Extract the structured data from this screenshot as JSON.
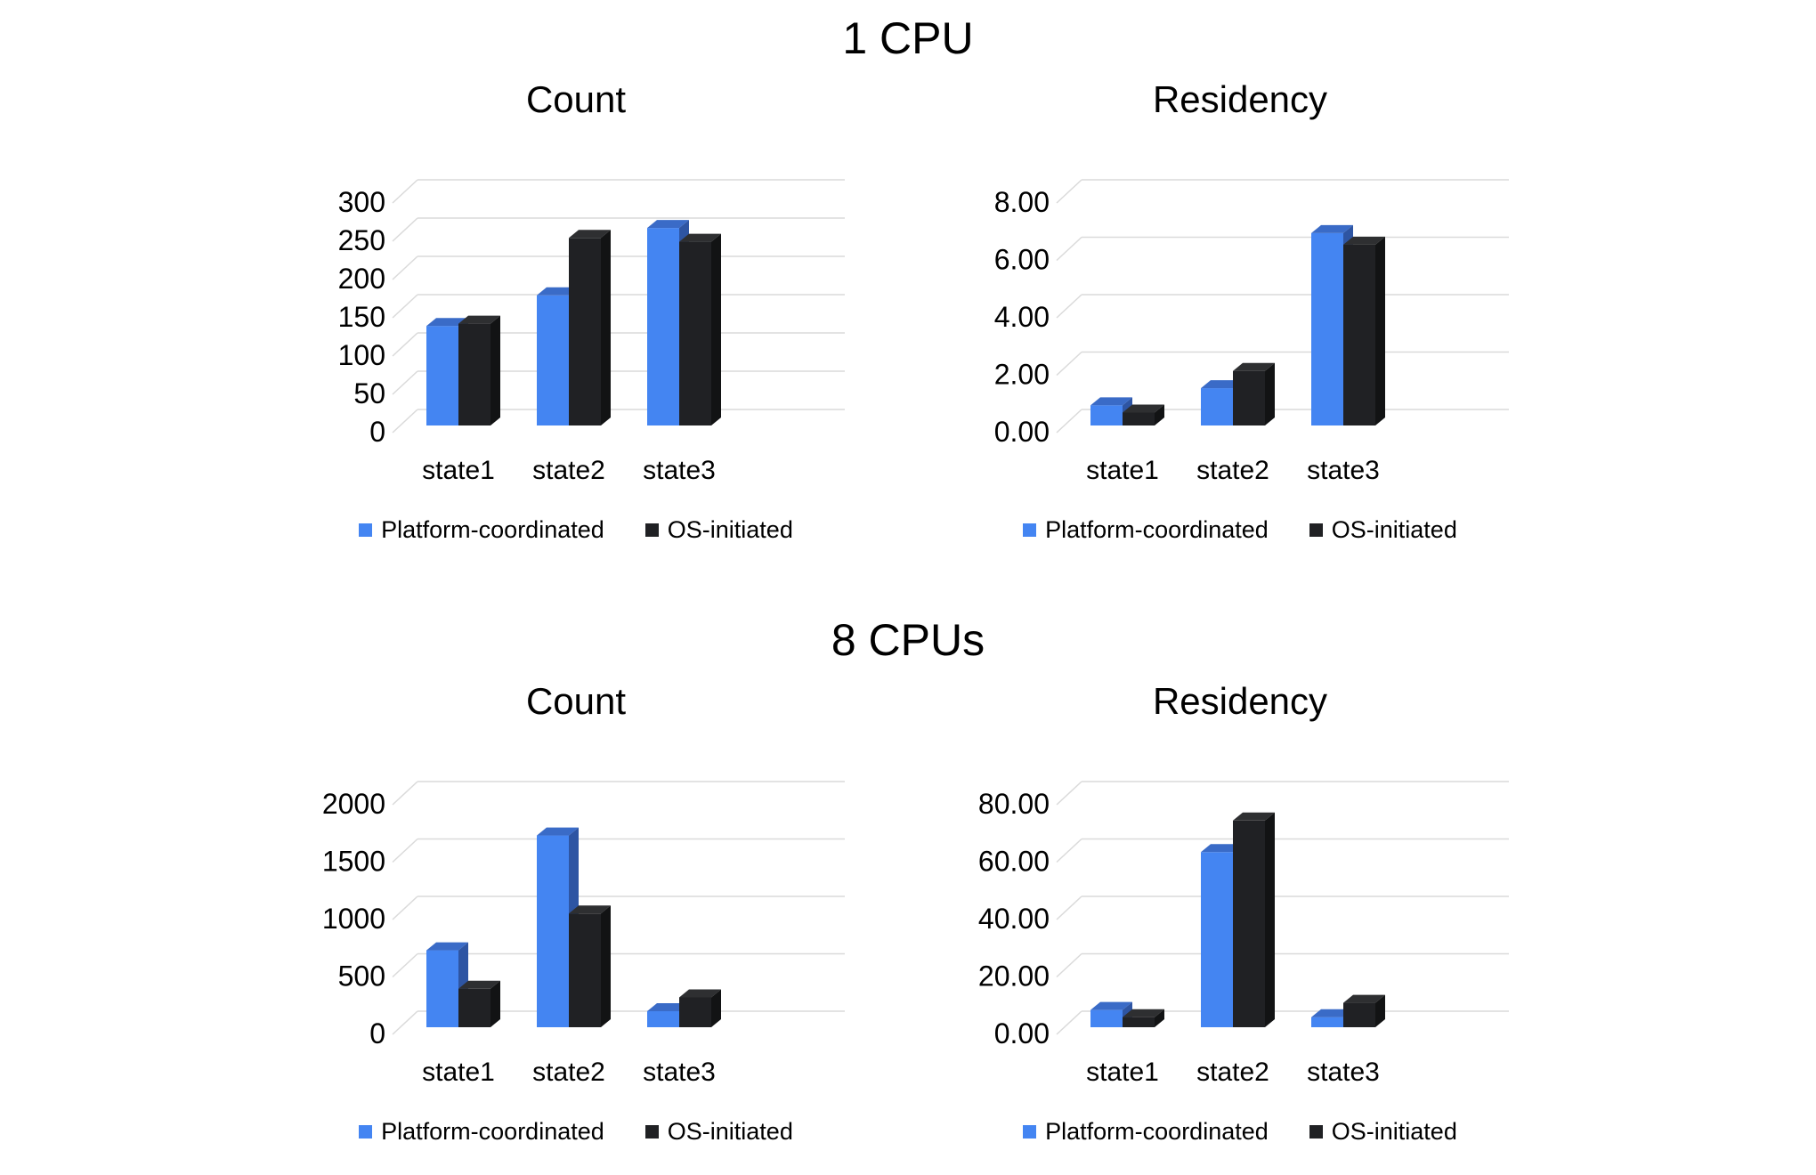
{
  "sections": [
    {
      "title": "1 CPU"
    },
    {
      "title": "8 CPUs"
    }
  ],
  "legend": {
    "platform_label": "Platform-coordinated",
    "os_label": "OS-initiated",
    "platform_color": "#4485F2",
    "os_color": "#212121"
  },
  "chart_data": [
    {
      "type": "bar",
      "style": "3d-column",
      "group": "1 CPU",
      "title": "Count",
      "categories": [
        "state1",
        "state2",
        "state3"
      ],
      "series": [
        {
          "name": "Platform-coordinated",
          "values": [
            130,
            170,
            258
          ],
          "colors": {
            "front": "#4485F2",
            "top": "#3A6BC7",
            "side": "#2E55A3"
          }
        },
        {
          "name": "OS-initiated",
          "values": [
            133,
            245,
            240
          ],
          "colors": {
            "front": "#202124",
            "top": "#2E2F31",
            "side": "#121314"
          }
        }
      ],
      "ylim": [
        0,
        300
      ],
      "ytick_labels": [
        "0",
        "50",
        "100",
        "150",
        "200",
        "250",
        "300"
      ],
      "grid": true,
      "legend_position": "bottom"
    },
    {
      "type": "bar",
      "style": "3d-column",
      "group": "1 CPU",
      "title": "Residency",
      "categories": [
        "state1",
        "state2",
        "state3"
      ],
      "series": [
        {
          "name": "Platform-coordinated",
          "values": [
            0.7,
            1.3,
            6.7
          ],
          "colors": {
            "front": "#4485F2",
            "top": "#3A6BC7",
            "side": "#2E55A3"
          }
        },
        {
          "name": "OS-initiated",
          "values": [
            0.45,
            1.9,
            6.3
          ],
          "colors": {
            "front": "#202124",
            "top": "#2E2F31",
            "side": "#121314"
          }
        }
      ],
      "ylim": [
        0,
        8
      ],
      "ytick_labels": [
        "0.00",
        "2.00",
        "4.00",
        "6.00",
        "8.00"
      ],
      "grid": true,
      "legend_position": "bottom"
    },
    {
      "type": "bar",
      "style": "3d-column",
      "group": "8 CPUs",
      "title": "Count",
      "categories": [
        "state1",
        "state2",
        "state3"
      ],
      "series": [
        {
          "name": "Platform-coordinated",
          "values": [
            670,
            1670,
            140
          ],
          "colors": {
            "front": "#4485F2",
            "top": "#3A6BC7",
            "side": "#2E55A3"
          }
        },
        {
          "name": "OS-initiated",
          "values": [
            335,
            990,
            260
          ],
          "colors": {
            "front": "#202124",
            "top": "#2E2F31",
            "side": "#121314"
          }
        }
      ],
      "ylim": [
        0,
        2000
      ],
      "ytick_labels": [
        "0",
        "500",
        "1000",
        "1500",
        "2000"
      ],
      "grid": true,
      "legend_position": "bottom"
    },
    {
      "type": "bar",
      "style": "3d-column",
      "group": "8 CPUs",
      "title": "Residency",
      "categories": [
        "state1",
        "state2",
        "state3"
      ],
      "series": [
        {
          "name": "Platform-coordinated",
          "values": [
            6,
            61,
            3.5
          ],
          "colors": {
            "front": "#4485F2",
            "top": "#3A6BC7",
            "side": "#2E55A3"
          }
        },
        {
          "name": "OS-initiated",
          "values": [
            3.5,
            72,
            8.5
          ],
          "colors": {
            "front": "#202124",
            "top": "#2E2F31",
            "side": "#121314"
          }
        }
      ],
      "ylim": [
        0,
        80
      ],
      "ytick_labels": [
        "0.00",
        "20.00",
        "40.00",
        "60.00",
        "80.00"
      ],
      "grid": true,
      "legend_position": "bottom"
    }
  ],
  "chart_style": {
    "gridline_color": "#DADADA",
    "text_color": "#000000",
    "background": "#FFFFFF"
  }
}
